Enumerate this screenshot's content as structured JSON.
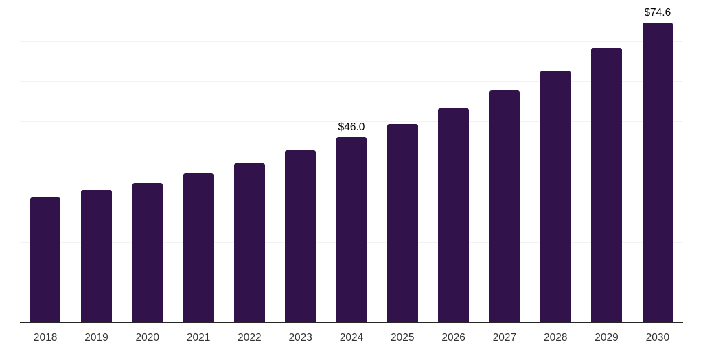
{
  "chart_data": {
    "type": "bar",
    "title": "",
    "xlabel": "",
    "ylabel": "",
    "categories": [
      "2018",
      "2019",
      "2020",
      "2021",
      "2022",
      "2023",
      "2024",
      "2025",
      "2026",
      "2027",
      "2028",
      "2029",
      "2030"
    ],
    "values": [
      31.0,
      33.0,
      34.7,
      37.0,
      39.6,
      42.8,
      46.0,
      49.3,
      53.2,
      57.7,
      62.6,
      68.3,
      74.6
    ],
    "annotations": [
      {
        "category": "2024",
        "text": "$46.0"
      },
      {
        "category": "2030",
        "text": "$74.6"
      }
    ],
    "ylim": [
      0,
      80
    ],
    "gridline_step": 10,
    "grid": true,
    "legend": false,
    "colors": {
      "bar": "#31124a",
      "axis_line": "#262626",
      "tick_label": "#333333",
      "data_label": "#000000",
      "gridline": "#f2f2f2",
      "background": "#ffffff"
    }
  }
}
